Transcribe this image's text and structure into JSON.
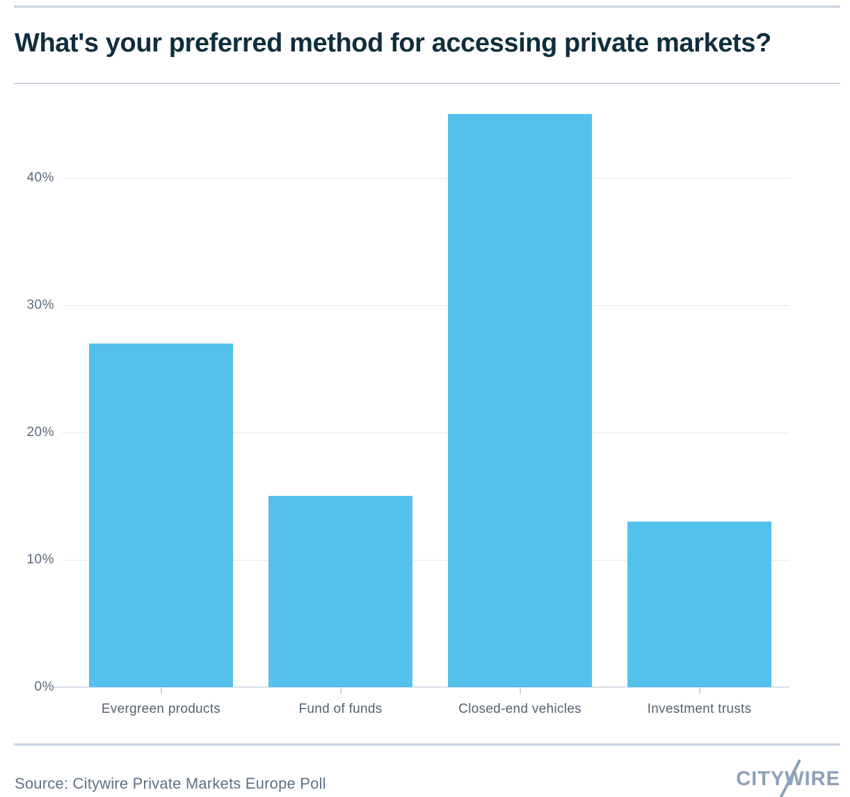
{
  "title": "What's your preferred method for accessing private markets?",
  "source": "Source: Citywire Private Markets Europe Poll",
  "logo": {
    "text": "CITYWIRE"
  },
  "colors": {
    "title": "#0f2e3e",
    "rule_outer": "#c7d2df",
    "rule_title": "#cbd5e0",
    "grid": "#e2e7f0",
    "baseline": "#d9dfe8",
    "tick": "#ccd4dd",
    "y_label": "#5a6a7c",
    "x_label": "#54616f",
    "source_text": "#5f7186",
    "logo": "#8ba1b9",
    "bar": "#54c0ec"
  },
  "chart_data": {
    "type": "bar",
    "categories": [
      "Evergreen products",
      "Fund of funds",
      "Closed-end vehicles",
      "Investment trusts"
    ],
    "values": [
      27,
      15,
      45,
      13
    ],
    "series_unit": "percent",
    "title": "What's your preferred method for accessing private markets?",
    "xlabel": "",
    "ylabel": "",
    "ylim": [
      0,
      46
    ],
    "yticks": [
      0,
      10,
      20,
      30,
      40
    ],
    "ytick_labels": [
      "0%",
      "10%",
      "20%",
      "30%",
      "40%"
    ],
    "grid": true,
    "legend": false,
    "bar_color": "#54c0ec",
    "source_note": "Source: Citywire Private Markets Europe Poll"
  }
}
